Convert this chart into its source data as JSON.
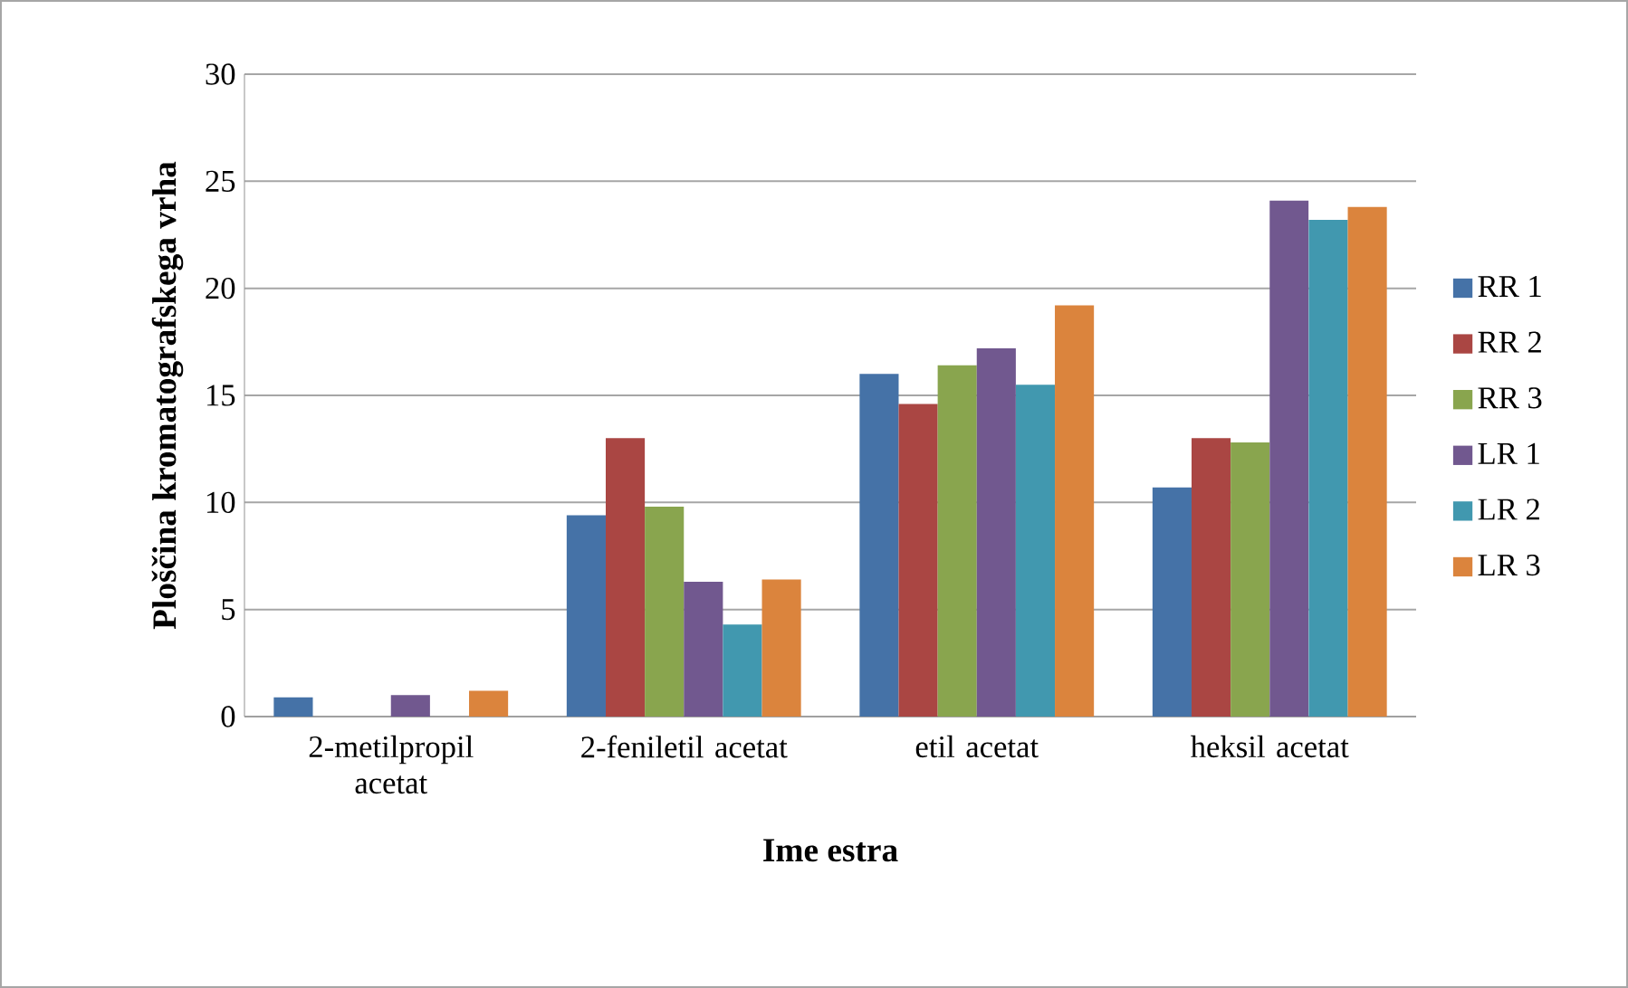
{
  "chart_data": {
    "type": "bar",
    "xlabel": "Ime estra",
    "ylabel": "Ploščina kromatografskega vrha",
    "categories": [
      "2-metilpropil acetat",
      "2-feniletil acetat",
      "etil acetat",
      "heksil acetat"
    ],
    "series": [
      {
        "name": "RR 1",
        "color": "#4572a7",
        "values": [
          0.9,
          9.4,
          16.0,
          10.7
        ]
      },
      {
        "name": "RR 2",
        "color": "#aa4643",
        "values": [
          0,
          13.0,
          14.6,
          13.0
        ]
      },
      {
        "name": "RR 3",
        "color": "#89a54e",
        "values": [
          0,
          9.8,
          16.4,
          12.8
        ]
      },
      {
        "name": "LR 1",
        "color": "#71588f",
        "values": [
          1.0,
          6.3,
          17.2,
          24.1
        ]
      },
      {
        "name": "LR 2",
        "color": "#4198af",
        "values": [
          0,
          4.3,
          15.5,
          23.2
        ]
      },
      {
        "name": "LR 3",
        "color": "#db843d",
        "values": [
          1.2,
          6.4,
          19.2,
          23.8
        ]
      }
    ],
    "ylim": [
      0,
      30
    ],
    "yticks": [
      0,
      5,
      10,
      15,
      20,
      25,
      30
    ],
    "grid": "y",
    "legend": "right"
  }
}
